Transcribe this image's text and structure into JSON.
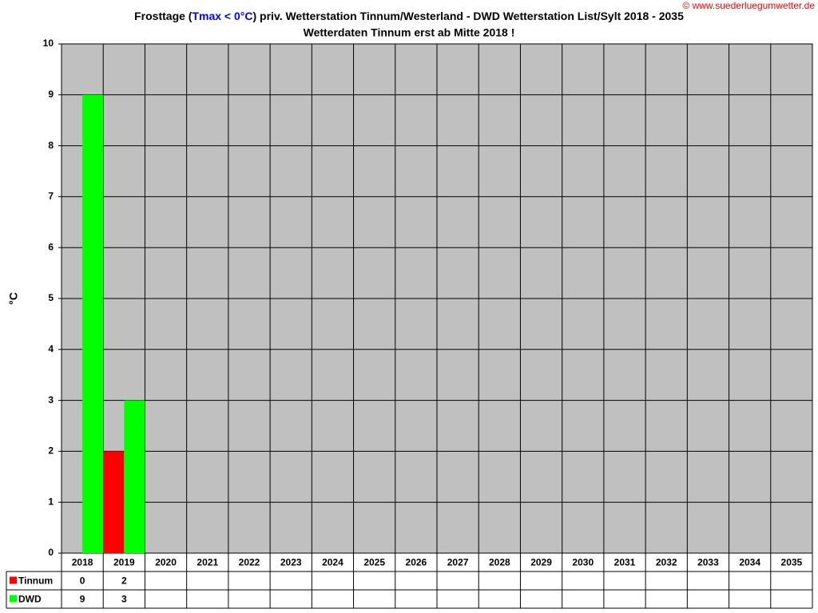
{
  "chart_data": {
    "type": "bar",
    "title_parts": [
      {
        "text": "Frosttage (",
        "color": "#000000"
      },
      {
        "text": "Tmax < 0°C",
        "color": "#0000ff"
      },
      {
        "text": ") priv. Wetterstation Tinnum/Westerland - DWD Wetterstation List/Sylt 2018 - 2035",
        "color": "#000000"
      }
    ],
    "subtitle": "Wetterdaten Tinnum erst ab Mitte 2018 !",
    "watermark": "© www.suederluegumwetter.de",
    "y_label": "°C",
    "categories": [
      "2018",
      "2019",
      "2020",
      "2021",
      "2022",
      "2023",
      "2024",
      "2025",
      "2026",
      "2027",
      "2028",
      "2029",
      "2030",
      "2031",
      "2032",
      "2033",
      "2034",
      "2035"
    ],
    "series": [
      {
        "name": "Tinnum",
        "color": "#ff0000",
        "values": [
          0,
          2,
          null,
          null,
          null,
          null,
          null,
          null,
          null,
          null,
          null,
          null,
          null,
          null,
          null,
          null,
          null,
          null
        ]
      },
      {
        "name": "DWD",
        "color": "#00ff00",
        "values": [
          9,
          3,
          null,
          null,
          null,
          null,
          null,
          null,
          null,
          null,
          null,
          null,
          null,
          null,
          null,
          null,
          null,
          null
        ]
      }
    ],
    "ylim": [
      0,
      10
    ],
    "yticks": [
      0,
      1,
      2,
      3,
      4,
      5,
      6,
      7,
      8,
      9,
      10
    ],
    "grid": true,
    "plot_background": "#c0c0c0"
  }
}
